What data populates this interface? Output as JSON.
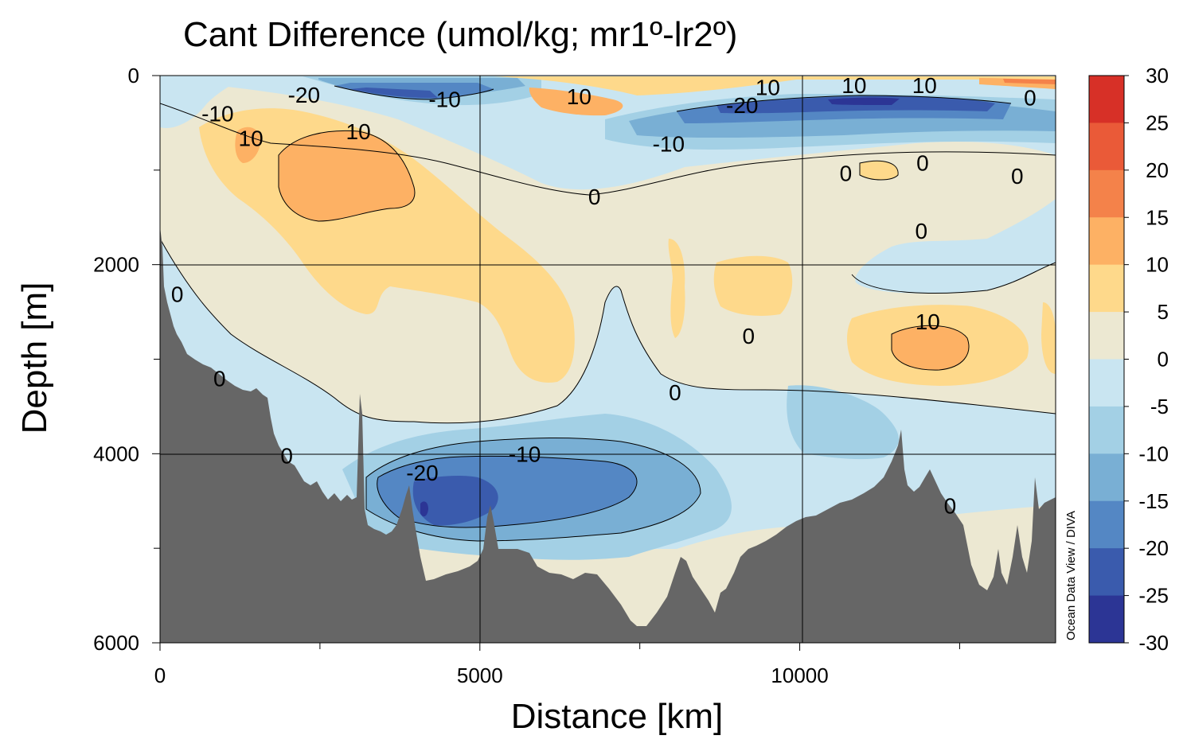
{
  "chart_data": {
    "type": "heatmap",
    "title": "Cant Difference (umol/kg; mr1º-lr2º)",
    "xlabel": "Distance [km]",
    "ylabel": "Depth [m]",
    "xlim": [
      0,
      14000
    ],
    "ylim": [
      6000,
      0
    ],
    "x_ticks": [
      {
        "value": 0,
        "label": "0"
      },
      {
        "value": 5000,
        "label": "5000"
      },
      {
        "value": 10000,
        "label": "10000"
      }
    ],
    "x_minor_ticks": [
      2500,
      7500,
      12500
    ],
    "y_ticks": [
      {
        "value": 0,
        "label": "0"
      },
      {
        "value": 2000,
        "label": "2000"
      },
      {
        "value": 4000,
        "label": "4000"
      },
      {
        "value": 6000,
        "label": "6000"
      }
    ],
    "y_minor_ticks": [
      1000,
      3000,
      5000
    ],
    "grid": true,
    "colorbar": {
      "levels": [
        {
          "from": 25,
          "to": 30,
          "color": "#d73027"
        },
        {
          "from": 20,
          "to": 25,
          "color": "#ea5a38"
        },
        {
          "from": 15,
          "to": 20,
          "color": "#f4824a"
        },
        {
          "from": 10,
          "to": 15,
          "color": "#fdb164"
        },
        {
          "from": 5,
          "to": 10,
          "color": "#fed98b"
        },
        {
          "from": 0,
          "to": 5,
          "color": "#ece8d2"
        },
        {
          "from": -5,
          "to": 0,
          "color": "#c9e5f1"
        },
        {
          "from": -10,
          "to": -5,
          "color": "#a3d0e5"
        },
        {
          "from": -15,
          "to": -10,
          "color": "#79afd4"
        },
        {
          "from": -20,
          "to": -15,
          "color": "#5487c4"
        },
        {
          "from": -25,
          "to": -20,
          "color": "#3a5bad"
        },
        {
          "from": -30,
          "to": -25,
          "color": "#2c3595"
        }
      ],
      "tick_labels": [
        "30",
        "25",
        "20",
        "15",
        "10",
        "5",
        "0",
        "-5",
        "-10",
        "-15",
        "-20",
        "-25",
        "-30"
      ]
    },
    "contour_labels": [
      {
        "text": "-20",
        "x": 2250,
        "y": 200
      },
      {
        "text": "-10",
        "x": 4450,
        "y": 250
      },
      {
        "text": "10",
        "x": 6550,
        "y": 220
      },
      {
        "text": "10",
        "x": 9500,
        "y": 120
      },
      {
        "text": "10",
        "x": 10850,
        "y": 100
      },
      {
        "text": "10",
        "x": 11950,
        "y": 100
      },
      {
        "text": "0",
        "x": 13600,
        "y": 230
      },
      {
        "text": "-20",
        "x": 9100,
        "y": 310
      },
      {
        "text": "-10",
        "x": 900,
        "y": 400
      },
      {
        "text": "10",
        "x": 1420,
        "y": 660
      },
      {
        "text": "10",
        "x": 3100,
        "y": 590
      },
      {
        "text": "-10",
        "x": 7950,
        "y": 720
      },
      {
        "text": "0",
        "x": 10720,
        "y": 1030
      },
      {
        "text": "0",
        "x": 11920,
        "y": 920
      },
      {
        "text": "0",
        "x": 13400,
        "y": 1060
      },
      {
        "text": "0",
        "x": 6790,
        "y": 1280
      },
      {
        "text": "0",
        "x": 11900,
        "y": 1640
      },
      {
        "text": "0",
        "x": 270,
        "y": 2310
      },
      {
        "text": "10",
        "x": 12000,
        "y": 2600
      },
      {
        "text": "0",
        "x": 9200,
        "y": 2750
      },
      {
        "text": "0",
        "x": 930,
        "y": 3200
      },
      {
        "text": "0",
        "x": 8050,
        "y": 3350
      },
      {
        "text": "-10",
        "x": 5700,
        "y": 4000
      },
      {
        "text": "0",
        "x": 1980,
        "y": 4020
      },
      {
        "text": "-20",
        "x": 4100,
        "y": 4200
      },
      {
        "text": "0",
        "x": 12350,
        "y": 4550
      }
    ],
    "watermark": "Ocean Data View / DIVA"
  }
}
